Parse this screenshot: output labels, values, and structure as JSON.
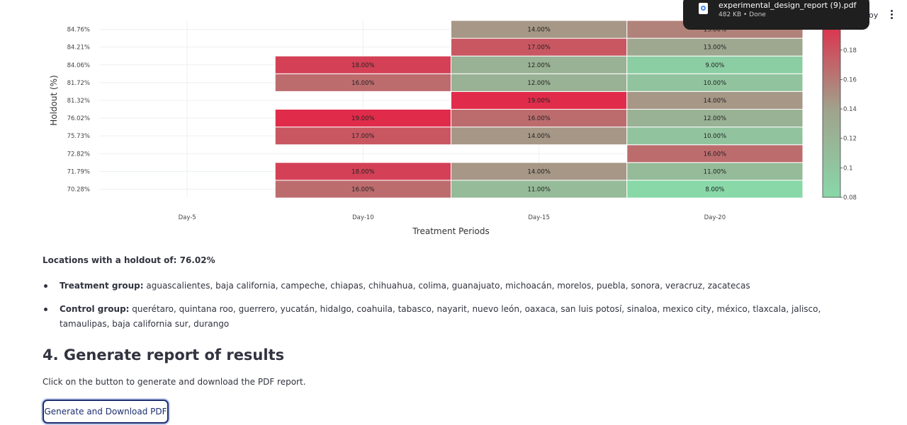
{
  "chart_data": {
    "type": "heatmap",
    "xlabel": "Treatment Periods",
    "ylabel": "Holdout (%)",
    "x": [
      "Day-5",
      "Day-10",
      "Day-15",
      "Day-20"
    ],
    "y": [
      "70.28%",
      "71.79%",
      "72.82%",
      "75.73%",
      "76.02%",
      "81.32%",
      "81.72%",
      "84.06%",
      "84.21%",
      "84.76%"
    ],
    "z": [
      [
        null,
        0.16,
        0.11,
        0.08
      ],
      [
        null,
        0.18,
        0.14,
        0.11
      ],
      [
        null,
        null,
        null,
        0.16
      ],
      [
        null,
        0.17,
        0.14,
        0.1
      ],
      [
        null,
        0.19,
        0.16,
        0.12
      ],
      [
        null,
        null,
        0.19,
        0.14
      ],
      [
        null,
        0.16,
        0.12,
        0.1
      ],
      [
        null,
        0.18,
        0.12,
        0.09
      ],
      [
        null,
        null,
        0.17,
        0.13
      ],
      [
        null,
        null,
        0.14,
        0.15
      ]
    ],
    "cell_labels": [
      [
        null,
        "16.00%",
        "11.00%",
        "8.00%"
      ],
      [
        null,
        "18.00%",
        "14.00%",
        "11.00%"
      ],
      [
        null,
        null,
        null,
        "16.00%"
      ],
      [
        null,
        "17.00%",
        "14.00%",
        "10.00%"
      ],
      [
        null,
        "19.00%",
        "16.00%",
        "12.00%"
      ],
      [
        null,
        null,
        "19.00%",
        "14.00%"
      ],
      [
        null,
        "16.00%",
        "12.00%",
        "10.00%"
      ],
      [
        null,
        "18.00%",
        "12.00%",
        "9.00%"
      ],
      [
        null,
        null,
        "17.00%",
        "13.00%"
      ],
      [
        null,
        null,
        "14.00%",
        "15.00%"
      ]
    ],
    "colorscale": [
      "#88d8a8",
      "#e02c4a"
    ],
    "zrange": [
      0.08,
      0.19
    ],
    "colorbar_ticks": [
      "0.08",
      "0.1",
      "0.12",
      "0.14",
      "0.16",
      "0.18"
    ],
    "grid": true
  },
  "locations": {
    "title": "Locations with a holdout of: 76.02%",
    "treatment_label": "Treatment group:",
    "treatment_list": "aguascalientes, baja california, campeche, chiapas, chihuahua, colima, guanajuato, michoacán, morelos, puebla, sonora, veracruz, zacatecas",
    "control_label": "Control group:",
    "control_list": "querétaro, quintana roo, guerrero, yucatán, hidalgo, coahuila, tabasco, nayarit, nuevo león, oaxaca, san luis potosí, sinaloa, mexico city, méxico, tlaxcala, jalisco, tamaulipas, baja california sur, durango"
  },
  "report": {
    "title": "4. Generate report of results",
    "description": "Click on the button to generate and download the PDF report.",
    "button_label": "Generate and Download PDF"
  },
  "download": {
    "filename": "experimental_design_report (9).pdf",
    "meta": "482 KB • Done",
    "icon": "pdf-file-icon"
  },
  "toolbar": {
    "peek_text": "oy"
  }
}
